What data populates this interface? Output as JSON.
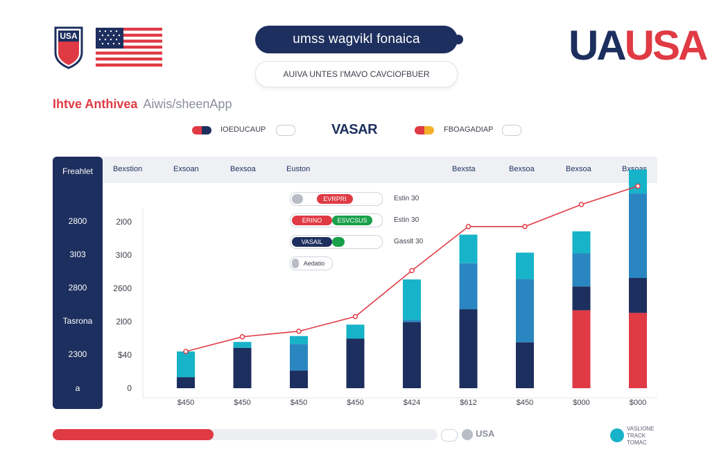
{
  "header": {
    "crest_text": "USA",
    "title": "umss wagvikl fonaica",
    "subtitle": "AUIVA UNTES I'MAVO CAVCIOFBUER",
    "brand_part1": "UA",
    "brand_part2": "USA",
    "headline_red": "Ihtve Anthivea",
    "headline_gray": "Aiwis/sheenApp"
  },
  "legend": {
    "left_label": "IOEDUCAUP",
    "center_label": "VASAR",
    "right_label": "FBOAGADIAP"
  },
  "table": {
    "corner": "Freahlet",
    "columns": [
      "Bexstion",
      "Exsoan",
      "Bexsoa",
      "Euston",
      "Bexsta",
      "Bexsoa",
      "Bexsoa",
      "Bxsoas"
    ],
    "side_values": [
      "2800",
      "3I03",
      "2800",
      "Tasrona",
      "2300",
      "a"
    ]
  },
  "progress": [
    {
      "segments": [
        "",
        "EVRPRI"
      ],
      "label": "Estin 30"
    },
    {
      "segments": [
        "ERINO",
        "ESVCSUS"
      ],
      "label": "Estin 30"
    },
    {
      "segments": [
        "VASAIL",
        ""
      ],
      "label": "Gasslt 30"
    },
    {
      "segments": [
        "Aedatio"
      ],
      "label": ""
    }
  ],
  "colors": {
    "navy": "#1d2f5e",
    "blue": "#2a86c0",
    "cyan": "#17b3c9",
    "red": "#e03a44",
    "line": "#e03a44"
  },
  "chart_data": {
    "type": "bar",
    "title": "",
    "xlabel": "",
    "ylabel": "",
    "ylim": [
      0,
      5
    ],
    "y_tick_labels": [
      "0",
      "$40",
      "2l00",
      "2600",
      "3I00",
      "2l00"
    ],
    "categories": [
      "$450",
      "$450",
      "$450",
      "$450",
      "$424",
      "$612",
      "$450",
      "$000",
      "$000"
    ],
    "series": [
      {
        "values": [
          0.3,
          1.1,
          0.48,
          1.35,
          1.8,
          2.15,
          1.25,
          0.0,
          0.0
        ]
      },
      {
        "values": [
          0.0,
          0.0,
          0.72,
          0.0,
          0.06,
          1.25,
          1.72,
          0.0,
          0.0
        ]
      },
      {
        "values": [
          0.0,
          0.0,
          0.0,
          0.0,
          0.0,
          0.0,
          0.0,
          0.65,
          0.95
        ]
      },
      {
        "values": [
          0.0,
          0.0,
          0.0,
          0.0,
          0.0,
          0.0,
          0.0,
          0.9,
          2.3
        ]
      },
      {
        "values": [
          0.7,
          0.16,
          0.22,
          0.38,
          1.1,
          0.78,
          0.72,
          0.6,
          0.65
        ]
      },
      {
        "values": [
          0.0,
          0.0,
          0.0,
          0.0,
          0.0,
          0.0,
          0.0,
          2.12,
          2.05
        ]
      }
    ],
    "line": [
      1.0,
      1.4,
      1.55,
      1.95,
      3.2,
      4.4,
      4.4,
      5.0,
      5.5
    ]
  }
}
